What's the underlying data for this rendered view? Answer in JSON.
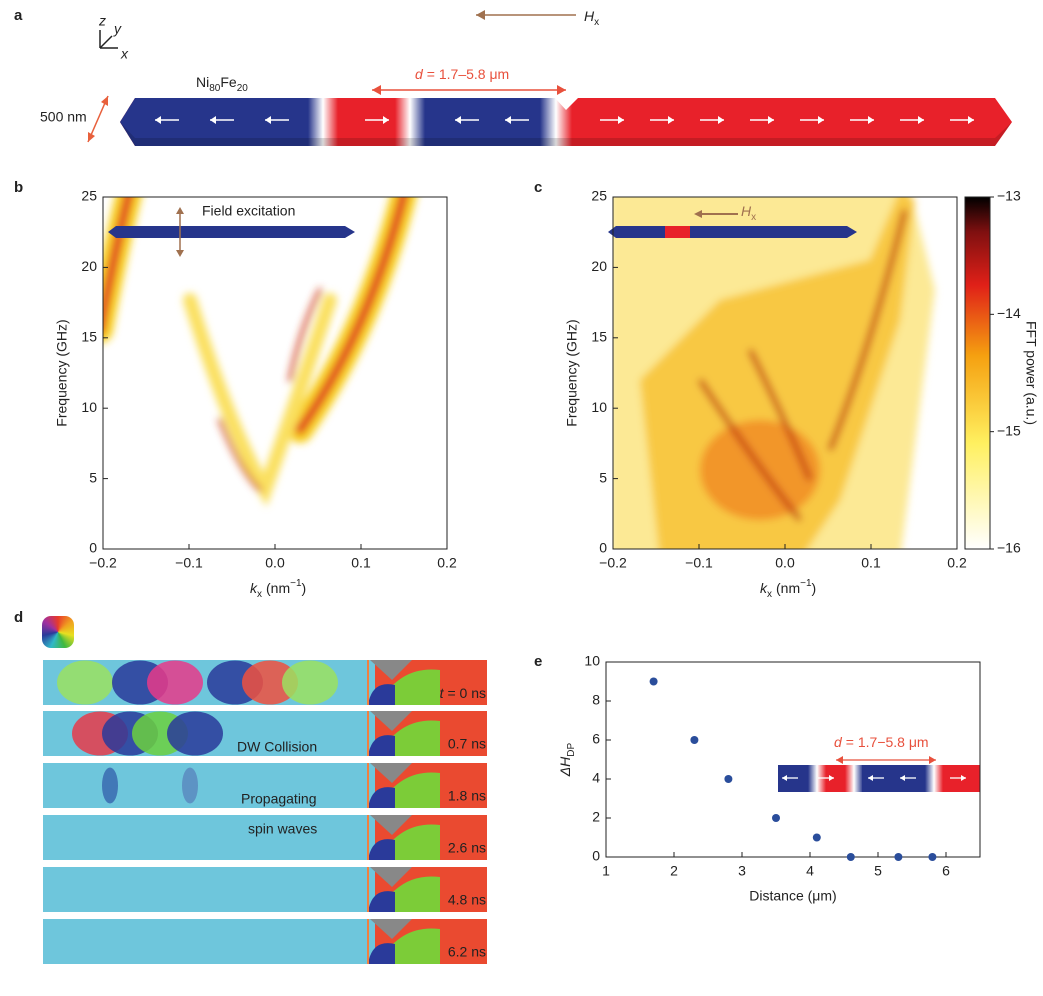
{
  "panel_labels": [
    "a",
    "b",
    "c",
    "d",
    "e"
  ],
  "panel_a": {
    "axes": [
      "z",
      "y",
      "x"
    ],
    "field": [
      "H",
      "x"
    ],
    "d_label": [
      "d",
      "= 1.7–5.8 μm"
    ],
    "material": [
      "Ni",
      "80",
      "Fe",
      "20"
    ],
    "width_label": "500 nm"
  },
  "panel_d": {
    "time_var": "t",
    "times": [
      "= 0 ns",
      "0.7 ns",
      "1.8 ns",
      "2.6 ns",
      "4.8 ns",
      "6.2 ns"
    ],
    "annotations": [
      "DW Collision",
      "Propagating",
      "spin waves"
    ]
  },
  "chart_data": [
    {
      "type": "heatmap",
      "xlabel": [
        "k",
        "x",
        "(nm",
        "−1",
        ")"
      ],
      "ylabel": "Frequency (GHz)",
      "annotation": "Field excitation",
      "xlim": [
        -0.2,
        0.2
      ],
      "ylim": [
        0,
        25
      ],
      "xticks": [
        {
          "value": -0.2,
          "label": "−0.2"
        },
        {
          "value": -0.1,
          "label": "−0.1"
        },
        {
          "value": 0,
          "label": "0.0"
        },
        0.1,
        0.2
      ],
      "yticks": [
        0,
        5,
        10,
        15,
        20,
        25
      ]
    },
    {
      "type": "heatmap",
      "xlabel": [
        "k",
        "x",
        "(nm",
        "−1",
        ")"
      ],
      "ylabel": "Frequency (GHz)",
      "annotation": [
        "H",
        "x"
      ],
      "xlim": [
        -0.2,
        0.2
      ],
      "ylim": [
        0,
        25
      ],
      "xticks": [
        {
          "value": -0.2,
          "label": "−0.2"
        },
        {
          "value": -0.1,
          "label": "−0.1"
        },
        {
          "value": 0,
          "label": "0.0"
        },
        0.1,
        0.2
      ],
      "yticks": [
        0,
        5,
        10,
        15,
        20,
        25
      ],
      "colorbar": {
        "label": "FFT power (a.u.)",
        "lim": [
          -16,
          -13
        ],
        "ticks": [
          {
            "value": -13,
            "label": "−13"
          },
          {
            "value": -14,
            "label": "−14"
          },
          {
            "value": -15,
            "label": "−15"
          },
          {
            "value": -16,
            "label": "−16"
          }
        ]
      }
    },
    {
      "type": "scatter",
      "xlabel": "Distance (μm)",
      "ylabel": [
        "ΔH",
        "DP"
      ],
      "color": "#2a4d9b",
      "annotation": [
        "d",
        "= 1.7−5.8 μm"
      ],
      "x": [
        1.7,
        2.3,
        2.8,
        3.5,
        4.1,
        4.6,
        5.3,
        5.8
      ],
      "values": [
        9,
        6,
        4,
        2,
        1,
        0,
        0,
        0
      ],
      "xlim": [
        1,
        6.5
      ],
      "ylim": [
        0,
        10
      ],
      "xticks": [
        1,
        2,
        3,
        4,
        5,
        6
      ],
      "yticks": [
        0,
        2,
        4,
        6,
        8,
        10
      ]
    }
  ]
}
